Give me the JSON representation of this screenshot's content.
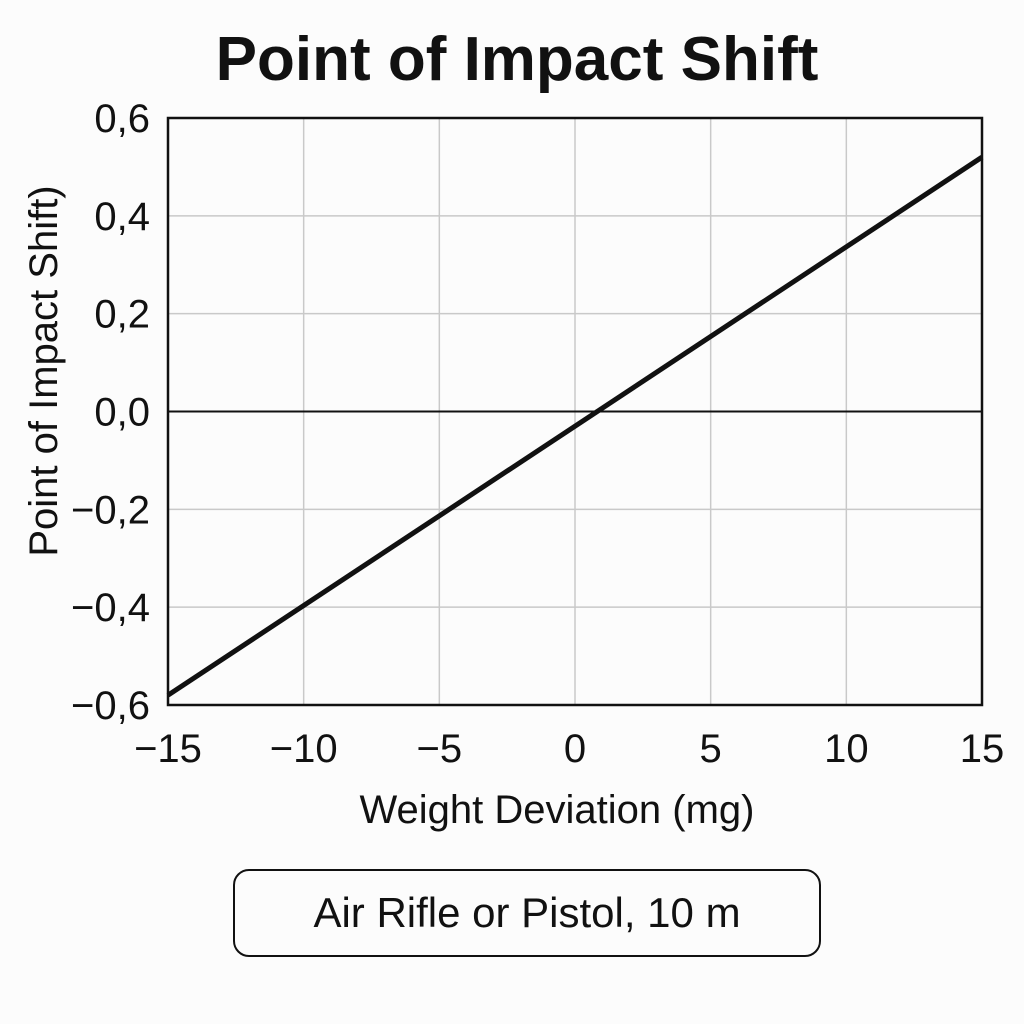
{
  "chart_data": {
    "type": "line",
    "title": "Point of Impact Shift",
    "xlabel": "Weight Deviation (mg)",
    "ylabel": "Point of Impact Shift)",
    "xlim": [
      -15,
      15
    ],
    "ylim": [
      -0.6,
      0.6
    ],
    "x_ticks": [
      -15,
      -10,
      -5,
      0,
      5,
      10,
      15
    ],
    "x_tick_labels": [
      "−15",
      "−10",
      "−5",
      "0",
      "5",
      "10",
      "15"
    ],
    "y_ticks": [
      -0.6,
      -0.4,
      -0.2,
      0.0,
      0.2,
      0.4,
      0.6
    ],
    "y_tick_labels": [
      "−0,6",
      "−0,4",
      "−0,2",
      "0,0",
      "0,2",
      "0,4",
      "0,6"
    ],
    "grid": true,
    "zero_line": true,
    "series": [
      {
        "color": "#111111",
        "x": [
          -15,
          15
        ],
        "y": [
          -0.58,
          0.52
        ]
      }
    ],
    "annotation": "Air Rifle or Pistol, 10 m"
  }
}
